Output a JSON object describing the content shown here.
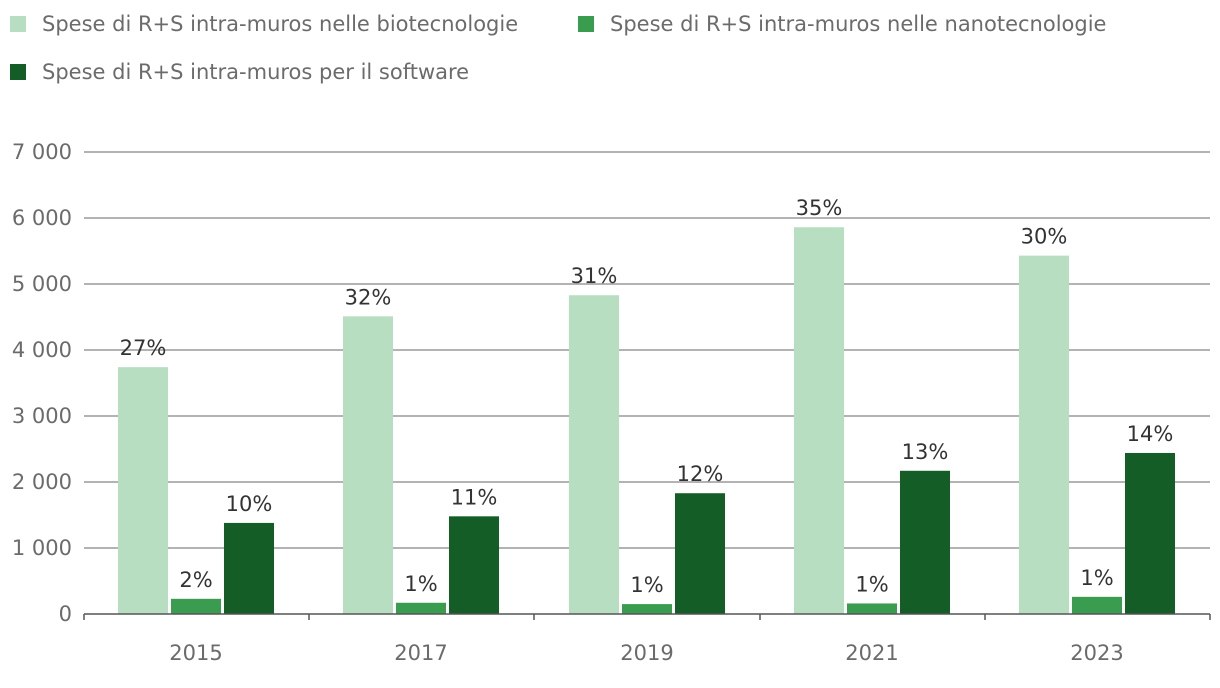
{
  "chart_data": {
    "type": "bar",
    "title": "",
    "xlabel": "",
    "ylabel": "",
    "ylim": [
      0,
      7000
    ],
    "yticks": [
      0,
      1000,
      2000,
      3000,
      4000,
      5000,
      6000,
      7000
    ],
    "ytick_labels": [
      "0",
      "1 000",
      "2 000",
      "3 000",
      "4 000",
      "5 000",
      "6 000",
      "7 000"
    ],
    "grid": true,
    "legend_position": "top-left",
    "categories": [
      "2015",
      "2017",
      "2019",
      "2021",
      "2023"
    ],
    "series": [
      {
        "name": "Spese di R+S intra-muros nelle biotecnologie",
        "color": "#b8dec2",
        "values": [
          3740,
          4510,
          4830,
          5860,
          5430
        ],
        "labels": [
          "27%",
          "32%",
          "31%",
          "35%",
          "30%"
        ]
      },
      {
        "name": "Spese di R+S intra-muros nelle nanotecnologie",
        "color": "#3a9c4e",
        "values": [
          230,
          170,
          150,
          160,
          260
        ],
        "labels": [
          "2%",
          "1%",
          "1%",
          "1%",
          "1%"
        ]
      },
      {
        "name": "Spese di R+S intra-muros per il software",
        "color": "#155d27",
        "values": [
          1380,
          1480,
          1830,
          2170,
          2440
        ],
        "labels": [
          "10%",
          "11%",
          "12%",
          "13%",
          "14%"
        ]
      }
    ]
  }
}
